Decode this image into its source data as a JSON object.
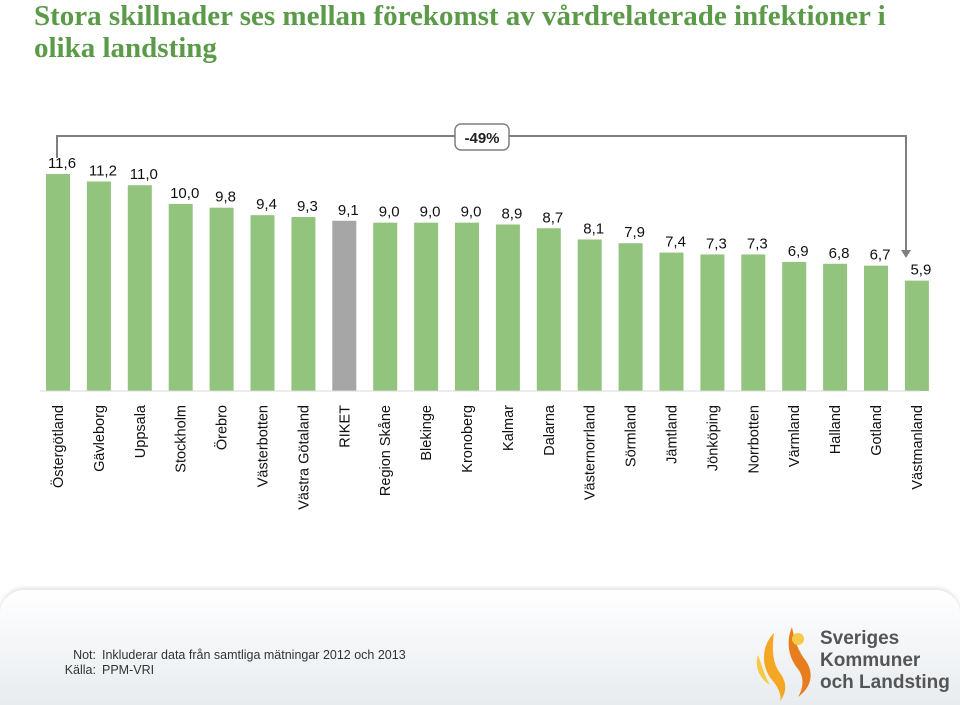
{
  "title": "Stora skillnader ses mellan förekomst av vårdrelaterade infektioner i olika landsting",
  "notes": {
    "not_label": "Not:",
    "not_text": "Inkluderar data från samtliga mätningar 2012 och 2013",
    "kalla_label": "Källa:",
    "kalla_text": "PPM-VRI"
  },
  "logo": {
    "line1": "Sveriges",
    "line2": "Kommuner",
    "line3": "och Landsting",
    "colors": [
      "#f5a623",
      "#e87d1e",
      "#f7c948"
    ]
  },
  "chart_data": {
    "type": "bar",
    "categories": [
      "Östergötland",
      "Gävleborg",
      "Uppsala",
      "Stockholm",
      "Örebro",
      "Västerbotten",
      "Västra Götaland",
      "RIKET",
      "Region Skåne",
      "Blekinge",
      "Kronoberg",
      "Kalmar",
      "Dalarna",
      "Västernorrland",
      "Sörmland",
      "Jämtland",
      "Jönköping",
      "Norrbotten",
      "Värmland",
      "Halland",
      "Gotland",
      "Västmanland"
    ],
    "values": [
      11.6,
      11.2,
      11.0,
      10.0,
      9.8,
      9.4,
      9.3,
      9.1,
      9.0,
      9.0,
      9.0,
      8.9,
      8.7,
      8.1,
      7.9,
      7.4,
      7.3,
      7.3,
      6.9,
      6.8,
      6.7,
      5.9
    ],
    "data_labels": [
      "11,6",
      "11,2",
      "11,0",
      "10,0",
      "9,8",
      "9,4",
      "9,3",
      "9,1",
      "9,0",
      "9,0",
      "9,0",
      "8,9",
      "8,7",
      "8,1",
      "7,9",
      "7,4",
      "7,3",
      "7,3",
      "6,9",
      "6,8",
      "6,7",
      "5,9"
    ],
    "highlight_category": "RIKET",
    "colors": {
      "bar": "#92c47d",
      "highlight": "#a6a6a6"
    },
    "annotation": "-49%",
    "ylim": [
      0,
      12
    ],
    "grid": false,
    "legend": "none"
  }
}
